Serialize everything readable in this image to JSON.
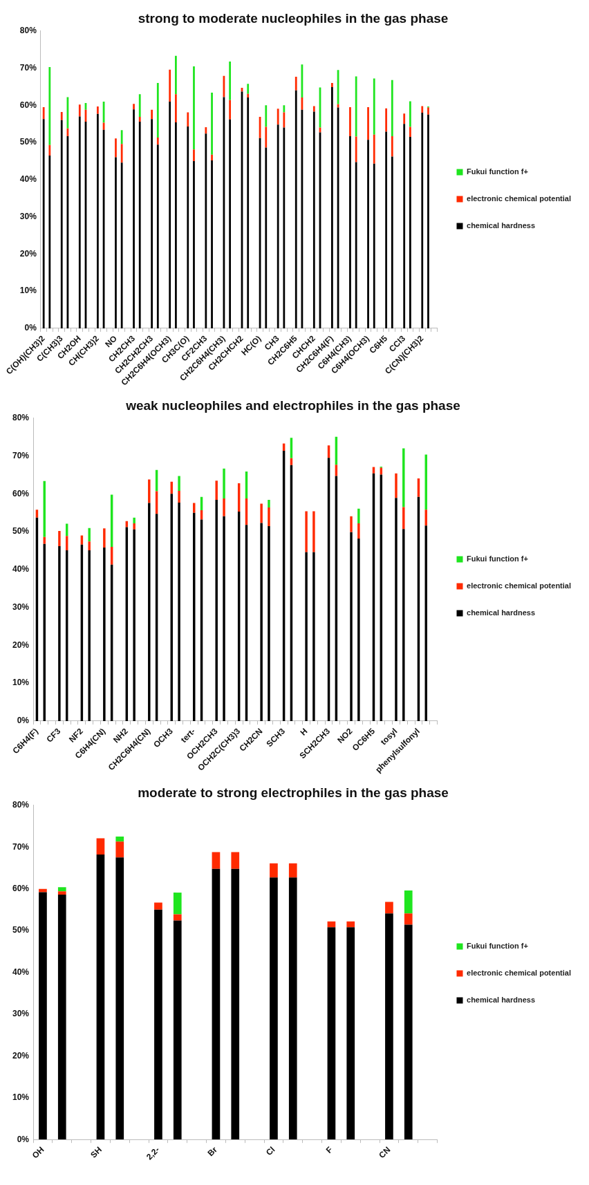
{
  "chart_data": [
    {
      "type": "bar",
      "title": "strong to moderate nucleophiles in the gas phase",
      "stacked": true,
      "legend": "right",
      "ylim": [
        0,
        80
      ],
      "yticks": [
        {
          "value": 0,
          "label": "0%"
        },
        {
          "value": 10,
          "label": "10%"
        },
        {
          "value": 20,
          "label": "20%"
        },
        {
          "value": 30,
          "label": "30%"
        },
        {
          "value": 40,
          "label": "40%"
        },
        {
          "value": 50,
          "label": "50%"
        },
        {
          "value": 60,
          "label": "60%"
        },
        {
          "value": 70,
          "label": "70%"
        },
        {
          "value": 80,
          "label": "80%"
        }
      ],
      "categories": [
        "C(OH)(CH3)2",
        null,
        null,
        "C(CH3)3",
        null,
        null,
        "CH2OH",
        null,
        null,
        "CH(CH3)2",
        null,
        null,
        "NO",
        null,
        null,
        "CH2CH3",
        null,
        null,
        "CH2CH2CH3",
        null,
        null,
        "CH2C6H4(OCH3)",
        null,
        null,
        "CH3C(O)",
        null,
        null,
        "CF2CH3",
        null,
        null,
        "CH2C6H4(CH3)",
        null,
        null,
        "CH2CHCH2",
        null,
        null,
        "HC(O)",
        null,
        null,
        "CH3",
        null,
        null,
        "CH2C6H5",
        null,
        null,
        "CHCH2",
        null,
        null,
        "CH2C6H4(F)",
        null,
        null,
        "C6H4(CH3)",
        null,
        null,
        "C6H4(OCH3)",
        null,
        null,
        "C6H5",
        null,
        null,
        "CCl3",
        null,
        null,
        "C(CN)(CH3)2",
        null,
        null
      ],
      "series": [
        {
          "name": "chemical hardness",
          "color": "#000000",
          "values": [
            56.3,
            46.5,
            null,
            56.0,
            51.7,
            null,
            57.0,
            55.6,
            null,
            57.7,
            53.4,
            null,
            46.0,
            44.6,
            null,
            58.9,
            55.6,
            null,
            56.3,
            49.4,
            null,
            61.0,
            55.4,
            null,
            54.3,
            45.0,
            null,
            52.4,
            45.2,
            null,
            62.2,
            56.2,
            null,
            63.7,
            62.1,
            null,
            51.2,
            48.6,
            null,
            54.8,
            54.0,
            null,
            64.0,
            58.8,
            null,
            58.3,
            52.7,
            null,
            64.9,
            59.4,
            null,
            51.7,
            44.7,
            null,
            50.7,
            44.3,
            null,
            52.9,
            46.2,
            null,
            55.0,
            51.5,
            null,
            58.0,
            57.5,
            null
          ]
        },
        {
          "name": "electronic chemical potential",
          "color": "#ff2a00",
          "values": [
            3.2,
            2.8,
            null,
            2.2,
            2.1,
            null,
            3.2,
            3.2,
            null,
            2.0,
            1.9,
            null,
            5.1,
            5.0,
            null,
            1.5,
            1.3,
            null,
            2.5,
            1.9,
            null,
            8.6,
            7.6,
            null,
            3.8,
            3.1,
            null,
            1.7,
            1.5,
            null,
            5.7,
            5.2,
            null,
            1.0,
            1.0,
            null,
            5.7,
            5.6,
            null,
            4.3,
            4.1,
            null,
            3.7,
            3.3,
            null,
            1.5,
            1.3,
            null,
            1.1,
            0.9,
            null,
            7.8,
            6.9,
            null,
            8.8,
            7.8,
            null,
            6.3,
            5.5,
            null,
            2.8,
            2.7,
            null,
            1.8,
            1.9,
            null
          ]
        },
        {
          "name": "Fukui function f+",
          "color": "#1fe51f",
          "values": [
            null,
            21.0,
            null,
            null,
            8.4,
            null,
            null,
            1.8,
            null,
            null,
            5.7,
            null,
            null,
            3.7,
            null,
            null,
            6.1,
            null,
            null,
            14.7,
            null,
            null,
            10.3,
            null,
            null,
            22.4,
            null,
            null,
            16.7,
            null,
            null,
            10.4,
            null,
            null,
            2.7,
            null,
            null,
            5.8,
            null,
            null,
            1.9,
            null,
            null,
            8.9,
            null,
            null,
            10.8,
            null,
            null,
            9.2,
            null,
            null,
            16.2,
            null,
            null,
            15.1,
            null,
            null,
            15.1,
            null,
            null,
            6.9,
            null,
            null,
            0.3,
            null
          ]
        }
      ]
    },
    {
      "type": "bar",
      "title": "weak nucleophiles and electrophiles in the gas phase",
      "stacked": true,
      "legend": "right",
      "ylim": [
        0,
        80
      ],
      "yticks": [
        {
          "value": 0,
          "label": "0%"
        },
        {
          "value": 10,
          "label": "10%"
        },
        {
          "value": 20,
          "label": "20%"
        },
        {
          "value": 30,
          "label": "30%"
        },
        {
          "value": 40,
          "label": "40%"
        },
        {
          "value": 50,
          "label": "50%"
        },
        {
          "value": 60,
          "label": "60%"
        },
        {
          "value": 70,
          "label": "70%"
        },
        {
          "value": 80,
          "label": "80%"
        }
      ],
      "categories": [
        "C6H4(F)",
        null,
        null,
        "CF3",
        null,
        null,
        "NF2",
        null,
        null,
        "C6H4(CN)",
        null,
        null,
        "NH2",
        null,
        null,
        "CH2C6H4(CN)",
        null,
        null,
        "OCH3",
        null,
        null,
        "tert-",
        null,
        null,
        "OCH2CH3",
        null,
        null,
        "OCH2C(CH3)3",
        null,
        null,
        "CH2CN",
        null,
        null,
        "SCH3",
        null,
        null,
        "H",
        null,
        null,
        "SCH2CH3",
        null,
        null,
        "NO2",
        null,
        null,
        "OC6H5",
        null,
        null,
        "tosyl",
        null,
        null,
        "phenylsulfonyl",
        null,
        null
      ],
      "series": [
        {
          "name": "chemical hardness",
          "color": "#000000",
          "values": [
            53.7,
            46.8,
            null,
            46.2,
            45.1,
            null,
            46.6,
            45.1,
            null,
            45.8,
            41.3,
            null,
            51.2,
            50.6,
            null,
            57.6,
            54.7,
            null,
            60.0,
            57.7,
            null,
            55.0,
            53.2,
            null,
            58.4,
            54.1,
            null,
            55.3,
            51.8,
            null,
            52.3,
            51.5,
            null,
            71.4,
            67.6,
            null,
            44.6,
            44.6,
            null,
            69.5,
            64.7,
            null,
            49.9,
            48.2,
            null,
            65.4,
            65.1,
            null,
            58.9,
            50.7,
            null,
            59.2,
            51.6,
            null
          ]
        },
        {
          "name": "electronic chemical potential",
          "color": "#ff2a00",
          "values": [
            2.1,
            1.8,
            null,
            4.0,
            3.8,
            null,
            2.4,
            2.3,
            null,
            5.1,
            4.7,
            null,
            1.6,
            1.6,
            null,
            6.2,
            6.0,
            null,
            3.2,
            3.1,
            null,
            2.6,
            2.5,
            null,
            5.1,
            4.7,
            null,
            7.5,
            7.0,
            null,
            5.1,
            4.9,
            null,
            1.9,
            1.8,
            null,
            10.8,
            10.8,
            null,
            3.3,
            3.0,
            null,
            4.2,
            4.0,
            null,
            1.7,
            1.8,
            null,
            6.5,
            5.8,
            null,
            4.9,
            4.2,
            null
          ]
        },
        {
          "name": "Fukui function f+",
          "color": "#1fe51f",
          "values": [
            null,
            14.8,
            null,
            null,
            3.2,
            null,
            null,
            3.6,
            null,
            null,
            13.8,
            null,
            null,
            1.5,
            null,
            null,
            5.6,
            null,
            null,
            3.9,
            null,
            null,
            3.5,
            null,
            null,
            7.9,
            null,
            null,
            7.1,
            null,
            null,
            2.0,
            null,
            null,
            5.4,
            null,
            null,
            null,
            null,
            null,
            7.4,
            null,
            null,
            3.9,
            null,
            null,
            0.3,
            null,
            null,
            15.5,
            null,
            null,
            14.6,
            null
          ]
        }
      ]
    },
    {
      "type": "bar",
      "title": "moderate to strong electrophiles in the gas phase",
      "stacked": true,
      "legend": "right",
      "ylim": [
        0,
        80
      ],
      "yticks": [
        {
          "value": 0,
          "label": "0%"
        },
        {
          "value": 10,
          "label": "10%"
        },
        {
          "value": 20,
          "label": "20%"
        },
        {
          "value": 30,
          "label": "30%"
        },
        {
          "value": 40,
          "label": "40%"
        },
        {
          "value": 50,
          "label": "50%"
        },
        {
          "value": 60,
          "label": "60%"
        },
        {
          "value": 70,
          "label": "70%"
        },
        {
          "value": 80,
          "label": "80%"
        }
      ],
      "categories": [
        "OH",
        null,
        null,
        "SH",
        null,
        null,
        "2,2-",
        null,
        null,
        "Br",
        null,
        null,
        "Cl",
        null,
        null,
        "F",
        null,
        null,
        "CN",
        null,
        null
      ],
      "series": [
        {
          "name": "chemical hardness",
          "color": "#000000",
          "values": [
            59.2,
            58.6,
            null,
            68.2,
            67.5,
            null,
            55.0,
            52.4,
            null,
            64.8,
            64.8,
            null,
            62.7,
            62.7,
            null,
            50.8,
            50.8,
            null,
            54.1,
            51.4,
            null
          ]
        },
        {
          "name": "electronic chemical potential",
          "color": "#ff2a00",
          "values": [
            0.8,
            0.8,
            null,
            3.9,
            3.8,
            null,
            1.7,
            1.5,
            null,
            4.0,
            4.0,
            null,
            3.4,
            3.4,
            null,
            1.4,
            1.4,
            null,
            2.8,
            2.7,
            null
          ]
        },
        {
          "name": "Fukui function f+",
          "color": "#1fe51f",
          "values": [
            null,
            1.0,
            null,
            null,
            1.2,
            null,
            null,
            5.2,
            null,
            null,
            null,
            null,
            null,
            null,
            null,
            null,
            null,
            null,
            null,
            5.5,
            null
          ]
        }
      ]
    }
  ]
}
